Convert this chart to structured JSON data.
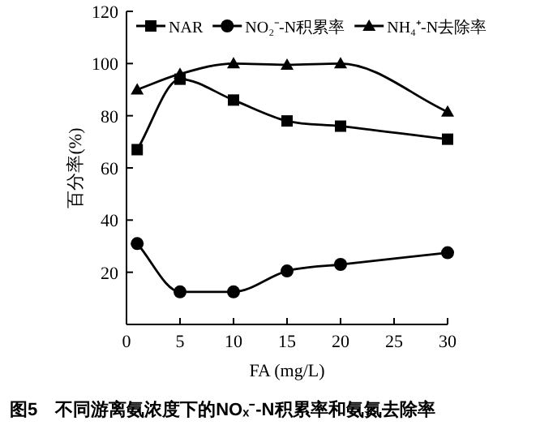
{
  "chart_data": {
    "type": "line",
    "xlabel": "FA (mg/L)",
    "ylabel": "百分率(%)",
    "annotations": [
      "图5　不同游离氨浓度下的NOₓ⁻-N积累率和氨氮去除率"
    ],
    "x": [
      1,
      5,
      10,
      15,
      20,
      30
    ],
    "series": [
      {
        "name": "NAR",
        "color": "#000000",
        "marker": "square",
        "values": [
          67,
          94,
          86,
          78,
          76,
          71
        ]
      },
      {
        "name": "NO₂⁻-N积累率",
        "color": "#000000",
        "marker": "circle",
        "values": [
          31,
          12.5,
          12.5,
          20.5,
          23,
          27.5
        ]
      },
      {
        "name": "NH₄⁺-N去除率",
        "color": "#000000",
        "marker": "triangle",
        "values": [
          90,
          96,
          100,
          99.5,
          100,
          81.5
        ]
      }
    ],
    "xlim": [
      0,
      30
    ],
    "xticks": [
      0,
      5,
      10,
      15,
      20,
      25,
      30
    ],
    "ylim": [
      0,
      120
    ],
    "yticks": [
      20,
      40,
      60,
      80,
      100,
      120
    ],
    "grid": false,
    "legend": "top",
    "line_style": "solid"
  }
}
